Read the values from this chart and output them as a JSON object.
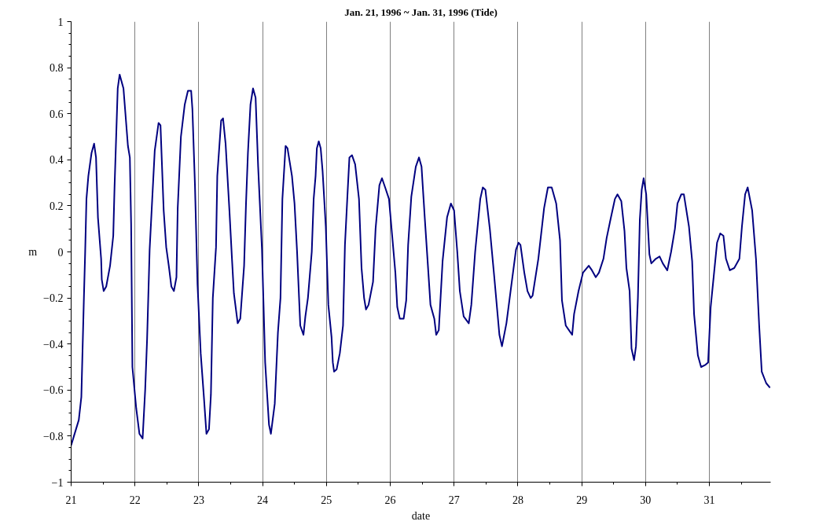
{
  "chart_data": {
    "type": "line",
    "title": "Jan. 21, 1996 ~ Jan. 31, 1996 (Tide)",
    "xlabel": "date",
    "ylabel": "m",
    "xlim": [
      21,
      31.96
    ],
    "xticks": [
      21,
      22,
      23,
      24,
      25,
      26,
      27,
      28,
      29,
      30,
      31
    ],
    "ylim": [
      -1,
      1
    ],
    "yticks": [
      -1,
      -0.8,
      -0.6,
      -0.4,
      -0.2,
      0,
      0.2,
      0.4,
      0.6,
      0.8,
      1
    ],
    "grid": "x",
    "marker": "none",
    "line_style": "solid",
    "series": [
      {
        "color": "#000080",
        "x": [
          21.0,
          21.12,
          21.16,
          21.2,
          21.22,
          21.24,
          21.27,
          21.32,
          21.36,
          21.39,
          21.42,
          21.47,
          21.48,
          21.51,
          21.55,
          21.61,
          21.66,
          21.68,
          21.73,
          21.76,
          21.82,
          21.89,
          21.92,
          21.94,
          21.96,
          22.02,
          22.07,
          22.12,
          22.16,
          22.19,
          22.23,
          22.28,
          22.31,
          22.37,
          22.4,
          22.45,
          22.49,
          22.53,
          22.57,
          22.61,
          22.65,
          22.67,
          22.72,
          22.78,
          22.83,
          22.88,
          22.9,
          22.94,
          22.98,
          23.03,
          23.08,
          23.12,
          23.16,
          23.19,
          23.22,
          23.27,
          23.29,
          23.35,
          23.38,
          23.42,
          23.48,
          23.52,
          23.55,
          23.61,
          23.65,
          23.71,
          23.74,
          23.77,
          23.81,
          23.85,
          23.89,
          23.93,
          23.99,
          24.04,
          24.1,
          24.13,
          24.19,
          24.24,
          24.28,
          24.31,
          24.36,
          24.39,
          24.46,
          24.5,
          24.54,
          24.59,
          24.64,
          24.67,
          24.71,
          24.77,
          24.8,
          24.83,
          24.85,
          24.88,
          24.91,
          24.94,
          24.99,
          25.03,
          25.08,
          25.1,
          25.12,
          25.16,
          25.21,
          25.26,
          25.29,
          25.33,
          25.36,
          25.4,
          25.45,
          25.51,
          25.55,
          25.59,
          25.62,
          25.66,
          25.73,
          25.77,
          25.83,
          25.87,
          25.92,
          25.98,
          26.03,
          26.08,
          26.11,
          26.15,
          26.21,
          26.25,
          26.28,
          26.33,
          26.4,
          26.45,
          26.49,
          26.54,
          26.59,
          26.63,
          26.69,
          26.72,
          26.76,
          26.82,
          26.89,
          26.95,
          27.0,
          27.05,
          27.09,
          27.15,
          27.23,
          27.27,
          27.33,
          27.41,
          27.45,
          27.49,
          27.56,
          27.63,
          27.71,
          27.75,
          27.82,
          27.89,
          27.97,
          28.01,
          28.04,
          28.1,
          28.15,
          28.2,
          28.23,
          28.32,
          28.41,
          28.47,
          28.53,
          28.6,
          28.66,
          28.69,
          28.75,
          28.8,
          28.85,
          28.88,
          28.95,
          29.02,
          29.11,
          29.16,
          29.22,
          29.27,
          29.34,
          29.39,
          29.45,
          29.52,
          29.56,
          29.62,
          29.67,
          29.7,
          29.75,
          29.78,
          29.82,
          29.85,
          29.88,
          29.91,
          29.94,
          29.97,
          30.01,
          30.06,
          30.09,
          30.16,
          30.22,
          30.27,
          30.34,
          30.4,
          30.46,
          30.5,
          30.56,
          30.6,
          30.68,
          30.73,
          30.76,
          30.82,
          30.87,
          30.94,
          30.98,
          31.02,
          31.07,
          31.12,
          31.17,
          31.22,
          31.26,
          31.32,
          31.39,
          31.47,
          31.51,
          31.56,
          31.6,
          31.67,
          31.73,
          31.78,
          31.82,
          31.89,
          31.95
        ],
        "values": [
          -0.84,
          -0.73,
          -0.63,
          -0.2,
          0.0,
          0.23,
          0.33,
          0.43,
          0.47,
          0.41,
          0.15,
          -0.03,
          -0.12,
          -0.17,
          -0.15,
          -0.06,
          0.07,
          0.28,
          0.71,
          0.77,
          0.71,
          0.46,
          0.41,
          0.12,
          -0.5,
          -0.68,
          -0.79,
          -0.81,
          -0.6,
          -0.38,
          0.01,
          0.28,
          0.44,
          0.56,
          0.55,
          0.18,
          0.02,
          -0.06,
          -0.15,
          -0.17,
          -0.11,
          0.19,
          0.5,
          0.64,
          0.7,
          0.7,
          0.62,
          0.29,
          -0.14,
          -0.44,
          -0.63,
          -0.79,
          -0.77,
          -0.62,
          -0.2,
          0.02,
          0.33,
          0.57,
          0.58,
          0.47,
          0.18,
          -0.03,
          -0.18,
          -0.31,
          -0.29,
          -0.06,
          0.21,
          0.43,
          0.64,
          0.71,
          0.67,
          0.37,
          0.01,
          -0.48,
          -0.75,
          -0.79,
          -0.66,
          -0.35,
          -0.2,
          0.23,
          0.46,
          0.45,
          0.33,
          0.21,
          0.0,
          -0.32,
          -0.36,
          -0.28,
          -0.2,
          0.0,
          0.23,
          0.33,
          0.45,
          0.48,
          0.45,
          0.35,
          0.11,
          -0.23,
          -0.37,
          -0.48,
          -0.52,
          -0.51,
          -0.44,
          -0.32,
          0.03,
          0.25,
          0.41,
          0.42,
          0.38,
          0.23,
          -0.07,
          -0.2,
          -0.25,
          -0.23,
          -0.13,
          0.1,
          0.29,
          0.32,
          0.28,
          0.23,
          0.07,
          -0.09,
          -0.24,
          -0.29,
          -0.29,
          -0.21,
          0.03,
          0.24,
          0.37,
          0.41,
          0.37,
          0.15,
          -0.06,
          -0.23,
          -0.29,
          -0.36,
          -0.34,
          -0.04,
          0.15,
          0.21,
          0.18,
          0.0,
          -0.17,
          -0.28,
          -0.31,
          -0.23,
          0.0,
          0.23,
          0.28,
          0.27,
          0.1,
          -0.11,
          -0.36,
          -0.41,
          -0.31,
          -0.16,
          0.01,
          0.04,
          0.03,
          -0.09,
          -0.17,
          -0.2,
          -0.19,
          -0.03,
          0.19,
          0.28,
          0.28,
          0.21,
          0.05,
          -0.21,
          -0.32,
          -0.34,
          -0.36,
          -0.27,
          -0.17,
          -0.09,
          -0.06,
          -0.08,
          -0.11,
          -0.09,
          -0.03,
          0.06,
          0.14,
          0.23,
          0.25,
          0.22,
          0.09,
          -0.07,
          -0.17,
          -0.42,
          -0.47,
          -0.41,
          -0.2,
          0.14,
          0.27,
          0.32,
          0.25,
          -0.01,
          -0.05,
          -0.03,
          -0.02,
          -0.05,
          -0.08,
          0.0,
          0.1,
          0.21,
          0.25,
          0.25,
          0.11,
          -0.04,
          -0.27,
          -0.45,
          -0.5,
          -0.49,
          -0.48,
          -0.24,
          -0.1,
          0.04,
          0.08,
          0.07,
          -0.03,
          -0.08,
          -0.07,
          -0.03,
          0.11,
          0.25,
          0.28,
          0.18,
          -0.03,
          -0.32,
          -0.52,
          -0.57,
          -0.59
        ]
      }
    ]
  }
}
